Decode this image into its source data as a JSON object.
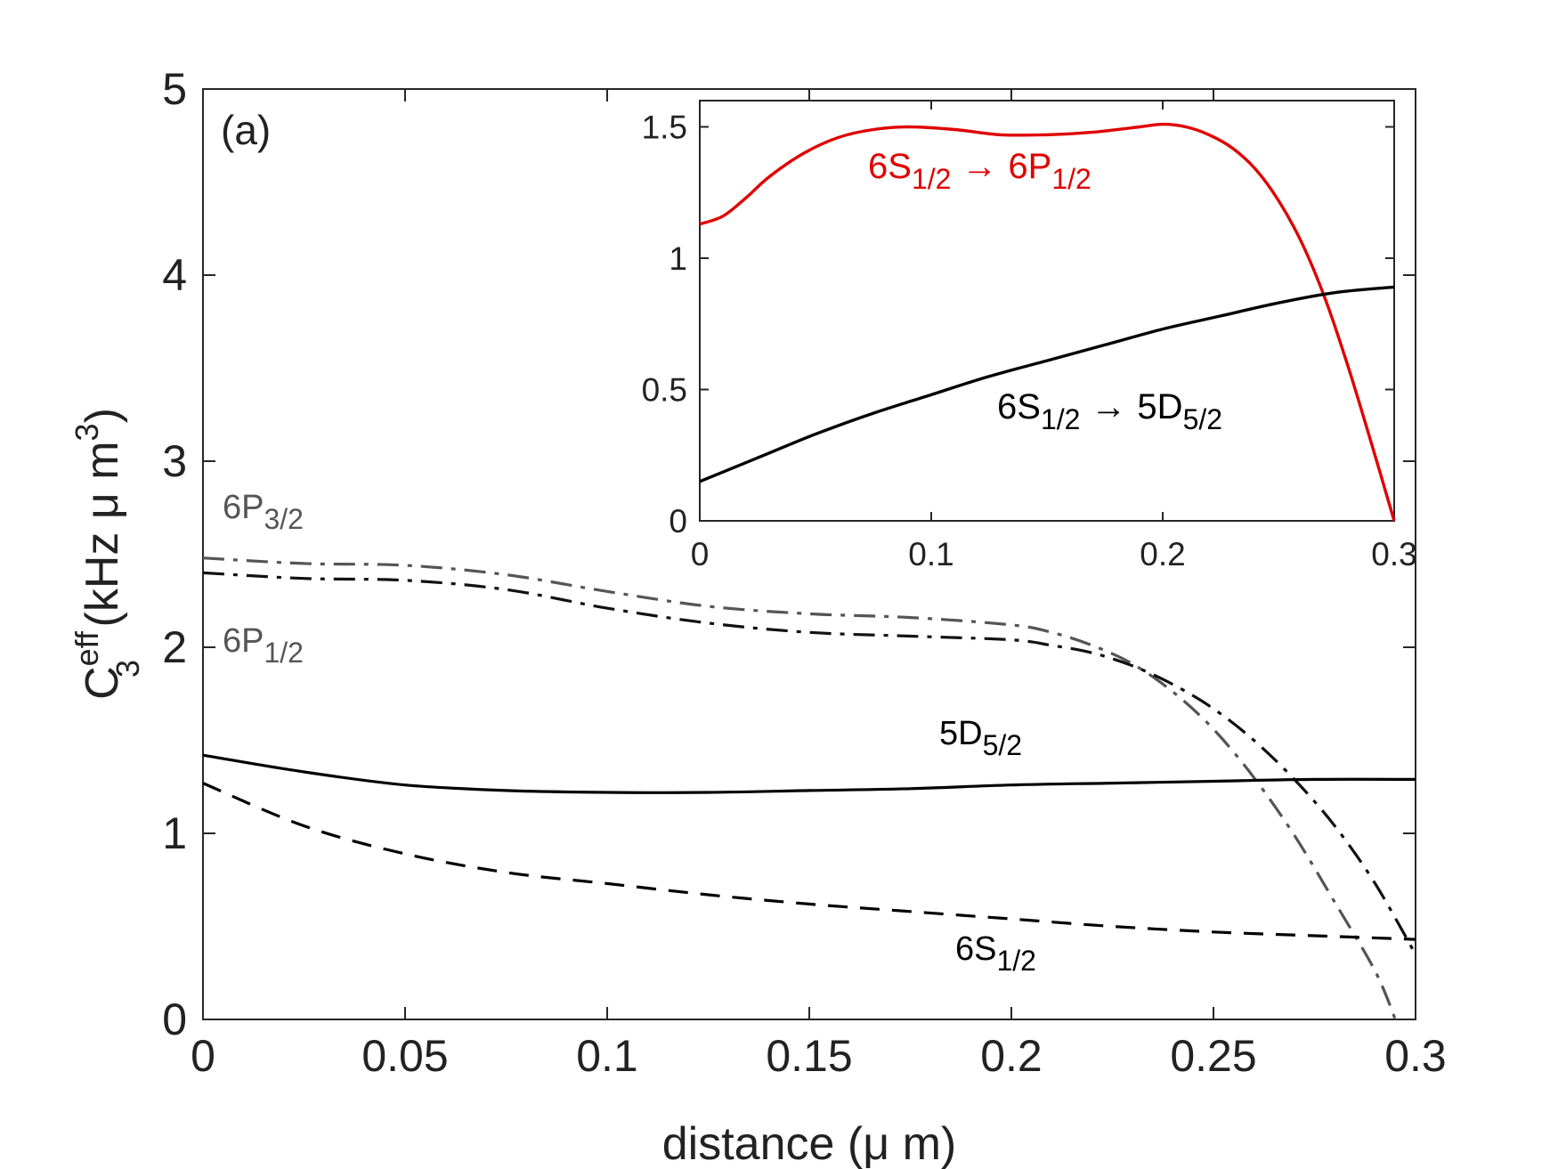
{
  "chart_data": [
    {
      "id": "main",
      "type": "line",
      "panel_label": "(a)",
      "xlabel": "distance (μ m)",
      "ylabel": "C3eff (kHz μ m3)",
      "xlim": [
        0,
        0.3
      ],
      "ylim": [
        0,
        5
      ],
      "xticks": [
        "0",
        "0.05",
        "0.1",
        "0.15",
        "0.2",
        "0.25",
        "0.3"
      ],
      "yticks": [
        "0",
        "1",
        "2",
        "3",
        "4",
        "5"
      ],
      "grid": false,
      "series": [
        {
          "name": "6P3/2",
          "label_main": "6P",
          "label_sub": "3/2",
          "color": "#555555",
          "style": "dashdot",
          "x": [
            0,
            0.025,
            0.05,
            0.075,
            0.1,
            0.125,
            0.15,
            0.175,
            0.2,
            0.21,
            0.22,
            0.23,
            0.24,
            0.25,
            0.26,
            0.27,
            0.28,
            0.29,
            0.295
          ],
          "y": [
            2.48,
            2.45,
            2.44,
            2.39,
            2.3,
            2.22,
            2.18,
            2.16,
            2.12,
            2.08,
            2.01,
            1.91,
            1.76,
            1.56,
            1.3,
            0.99,
            0.63,
            0.26,
            0.0
          ]
        },
        {
          "name": "6P1/2",
          "label_main": "6P",
          "label_sub": "1/2",
          "color": "#111111",
          "style": "dashdot",
          "x": [
            0,
            0.025,
            0.05,
            0.075,
            0.1,
            0.125,
            0.15,
            0.175,
            0.2,
            0.21,
            0.22,
            0.23,
            0.24,
            0.25,
            0.26,
            0.27,
            0.28,
            0.29,
            0.3
          ],
          "y": [
            2.4,
            2.37,
            2.36,
            2.31,
            2.21,
            2.13,
            2.08,
            2.06,
            2.04,
            2.01,
            1.97,
            1.9,
            1.8,
            1.67,
            1.5,
            1.29,
            1.04,
            0.73,
            0.35
          ]
        },
        {
          "name": "5D5/2",
          "label_main": "5D",
          "label_sub": "5/2",
          "color": "#000000",
          "style": "solid",
          "x": [
            0,
            0.025,
            0.05,
            0.075,
            0.1,
            0.125,
            0.15,
            0.175,
            0.2,
            0.225,
            0.25,
            0.275,
            0.3
          ],
          "y": [
            1.42,
            1.33,
            1.26,
            1.23,
            1.22,
            1.22,
            1.23,
            1.24,
            1.26,
            1.27,
            1.28,
            1.29,
            1.29
          ]
        },
        {
          "name": "6S1/2",
          "label_main": "6S",
          "label_sub": "1/2",
          "color": "#000000",
          "style": "dashed",
          "x": [
            0,
            0.025,
            0.05,
            0.075,
            0.1,
            0.125,
            0.15,
            0.175,
            0.2,
            0.225,
            0.25,
            0.275,
            0.3
          ],
          "y": [
            1.27,
            1.04,
            0.89,
            0.79,
            0.73,
            0.67,
            0.62,
            0.58,
            0.54,
            0.5,
            0.47,
            0.45,
            0.43
          ]
        }
      ]
    },
    {
      "id": "inset",
      "type": "line",
      "xlim": [
        0,
        0.3
      ],
      "ylim": [
        0,
        1.6
      ],
      "xticks": [
        "0",
        "0.1",
        "0.2",
        "0.3"
      ],
      "yticks": [
        "0",
        "0.5",
        "1",
        "1.5"
      ],
      "grid": false,
      "series": [
        {
          "name": "6S1/2 → 6P1/2",
          "label_a": "6S",
          "label_a_sub": "1/2",
          "label_arrow": "→",
          "label_b": "6P",
          "label_b_sub": "1/2",
          "color": "#e00000",
          "style": "solid",
          "x": [
            0,
            0.01,
            0.02,
            0.03,
            0.045,
            0.06,
            0.075,
            0.09,
            0.11,
            0.13,
            0.15,
            0.17,
            0.19,
            0.2,
            0.21,
            0.22,
            0.23,
            0.24,
            0.25,
            0.26,
            0.27,
            0.28,
            0.29,
            0.3
          ],
          "y": [
            1.13,
            1.16,
            1.23,
            1.31,
            1.4,
            1.46,
            1.49,
            1.5,
            1.49,
            1.47,
            1.47,
            1.48,
            1.5,
            1.51,
            1.5,
            1.47,
            1.42,
            1.34,
            1.22,
            1.06,
            0.85,
            0.59,
            0.3,
            0.0
          ]
        },
        {
          "name": "6S1/2 → 5D5/2",
          "label_a": "6S",
          "label_a_sub": "1/2",
          "label_arrow": "→",
          "label_b": "5D",
          "label_b_sub": "5/2",
          "color": "#000000",
          "style": "solid",
          "x": [
            0,
            0.025,
            0.05,
            0.075,
            0.1,
            0.125,
            0.15,
            0.175,
            0.2,
            0.225,
            0.25,
            0.275,
            0.3
          ],
          "y": [
            0.15,
            0.24,
            0.33,
            0.41,
            0.48,
            0.55,
            0.61,
            0.67,
            0.73,
            0.78,
            0.83,
            0.87,
            0.89
          ]
        }
      ]
    }
  ]
}
